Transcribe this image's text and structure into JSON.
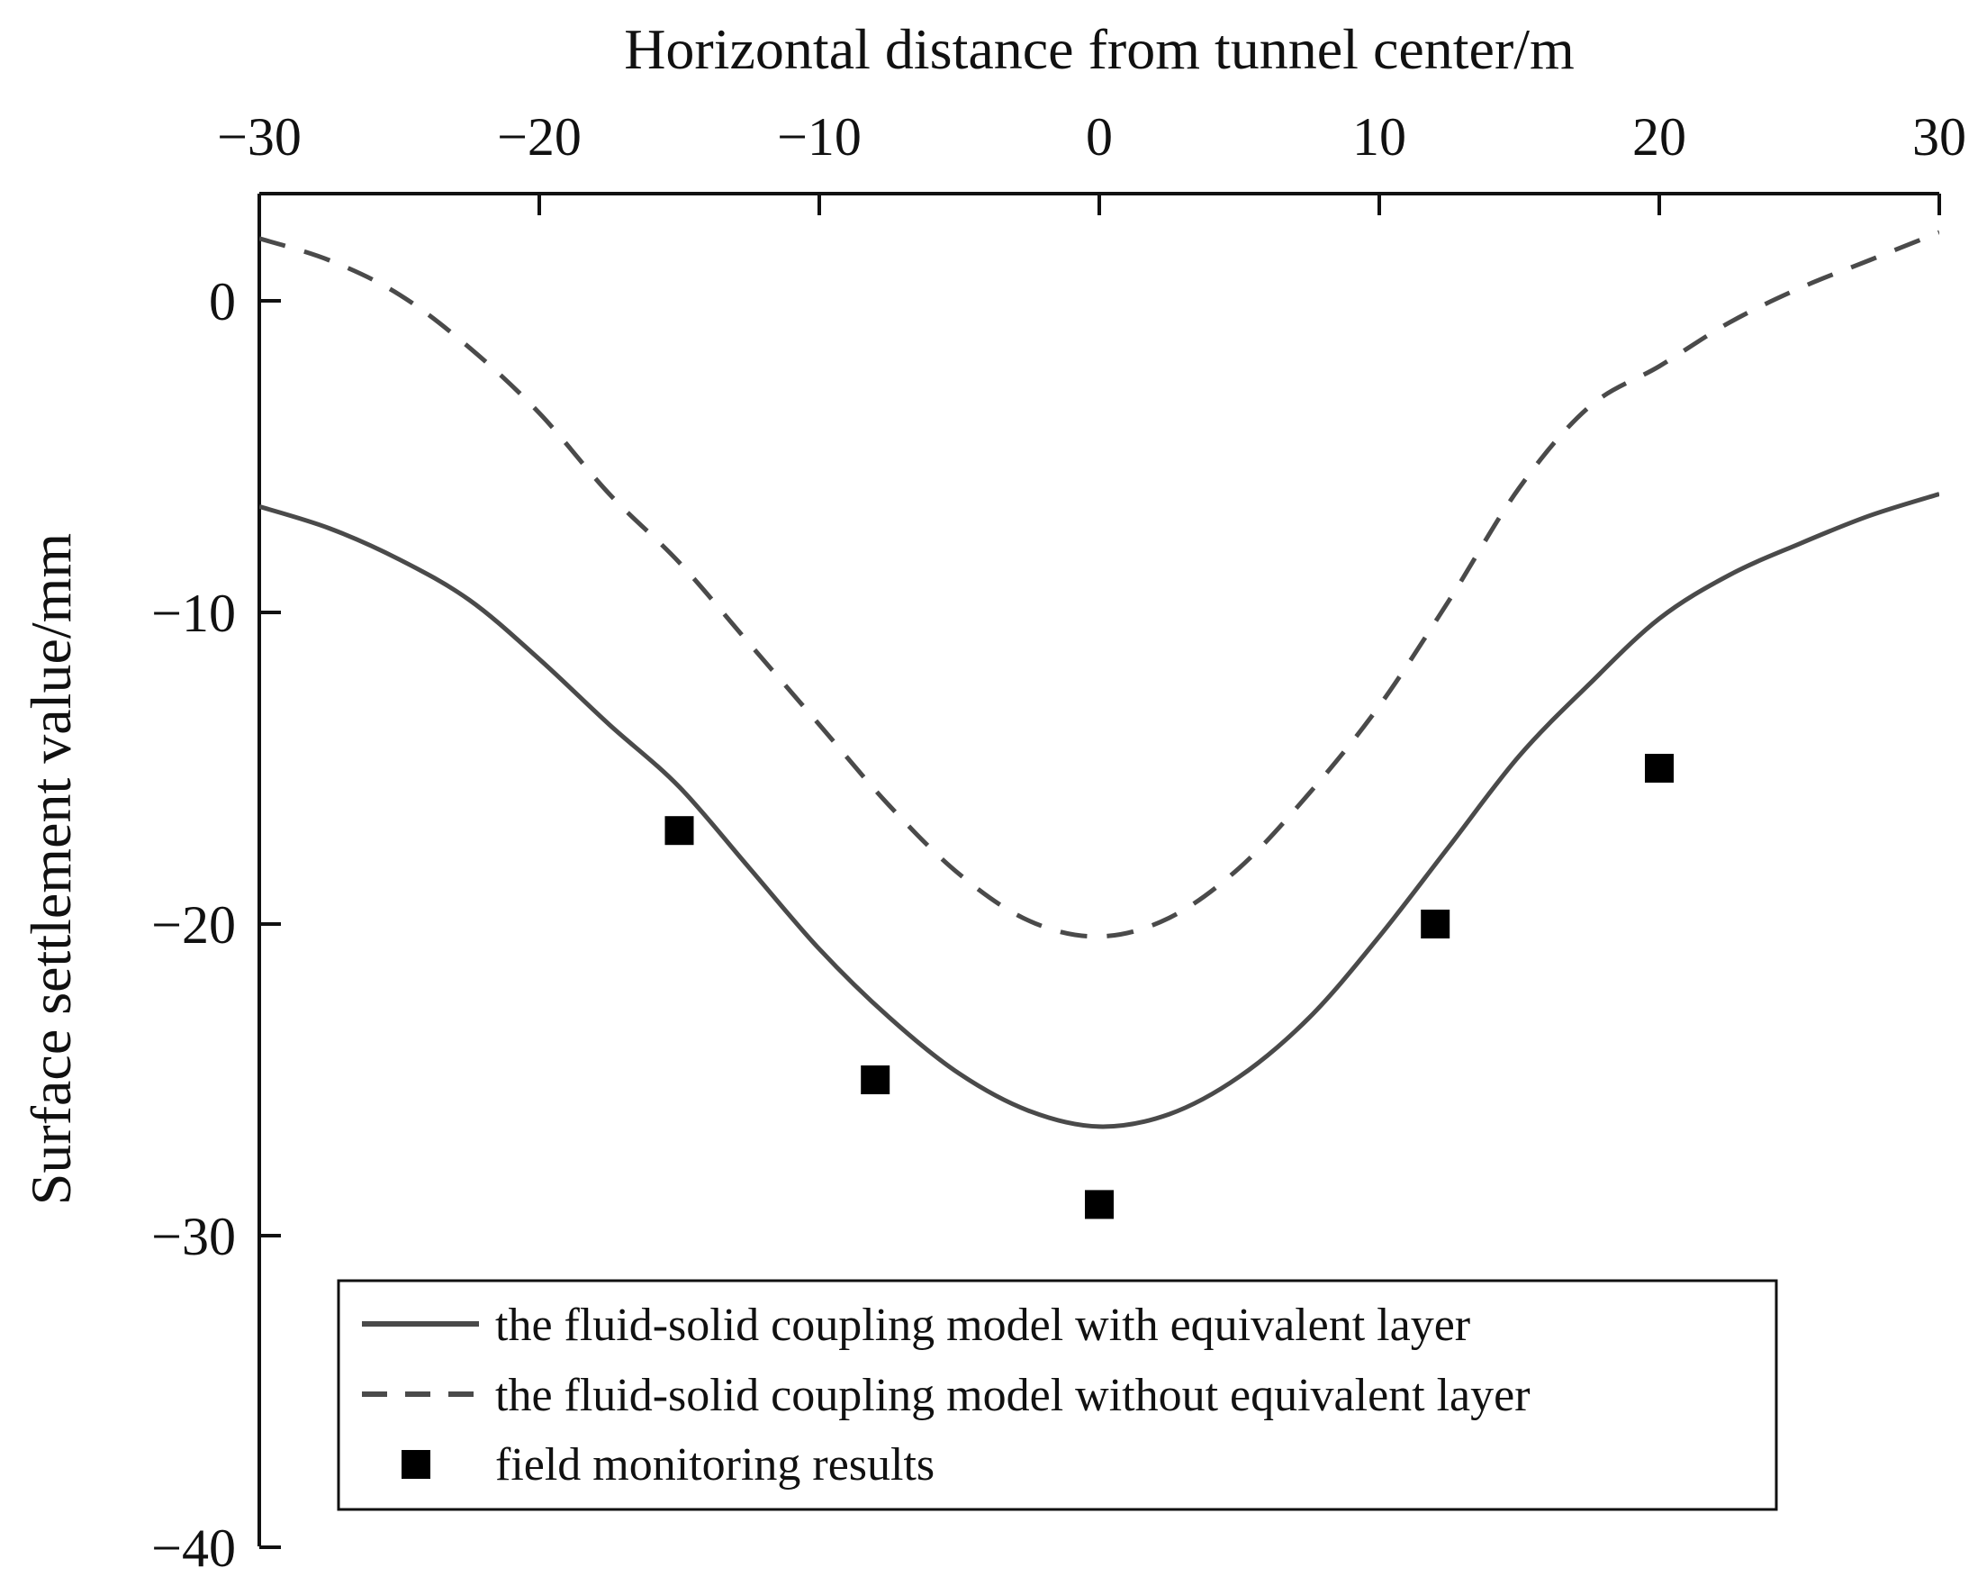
{
  "chart_data": {
    "type": "line",
    "title": "",
    "xlabel": "Horizontal distance from tunnel center/m",
    "ylabel": "Surface settlement value/mm",
    "xlim": [
      -30,
      30
    ],
    "ylim": [
      -40,
      3.5
    ],
    "x_axis_position": "top",
    "x_ticks": [
      -30,
      -20,
      -10,
      0,
      10,
      20,
      30
    ],
    "x_tick_labels": [
      "−30",
      "−20",
      "−10",
      "0",
      "10",
      "20",
      "30"
    ],
    "y_ticks": [
      0,
      -10,
      -20,
      -30,
      -40
    ],
    "y_tick_labels": [
      "0",
      "−10",
      "−20",
      "−30",
      "−40"
    ],
    "grid": false,
    "legend_position": "bottom-left",
    "series": [
      {
        "name": "the fluid-solid coupling model with equivalent layer",
        "style": "solid",
        "color": "#4a4a4a",
        "x": [
          -30,
          -27.5,
          -25,
          -22.5,
          -20,
          -17.5,
          -15,
          -12.5,
          -10,
          -7.5,
          -5,
          -2.5,
          0,
          2.5,
          5,
          7.5,
          10,
          12.5,
          15,
          17.5,
          20,
          22.5,
          25,
          27.5,
          30
        ],
        "y": [
          -6.6,
          -7.3,
          -8.3,
          -9.6,
          -11.5,
          -13.6,
          -15.6,
          -18.2,
          -20.8,
          -23.0,
          -24.8,
          -26.0,
          -26.5,
          -26.1,
          -24.9,
          -23.0,
          -20.4,
          -17.5,
          -14.6,
          -12.3,
          -10.2,
          -8.8,
          -7.8,
          -6.9,
          -6.2
        ]
      },
      {
        "name": "the fluid-solid coupling model without equivalent layer",
        "style": "dashed",
        "color": "#4a4a4a",
        "x": [
          -30,
          -27.5,
          -25,
          -22.5,
          -20,
          -17.5,
          -15,
          -12.5,
          -10,
          -7.5,
          -5,
          -2.5,
          0,
          2.5,
          5,
          7.5,
          10,
          12.5,
          15,
          17.5,
          20,
          22.5,
          25,
          27.5,
          30
        ],
        "y": [
          2.0,
          1.3,
          0.2,
          -1.5,
          -3.6,
          -6.2,
          -8.4,
          -11.0,
          -13.6,
          -16.2,
          -18.4,
          -19.9,
          -20.4,
          -19.8,
          -18.2,
          -15.8,
          -13.0,
          -9.6,
          -6.0,
          -3.4,
          -2.1,
          -0.7,
          0.4,
          1.3,
          2.2
        ]
      },
      {
        "name": "field monitoring results",
        "style": "markers",
        "marker": "square",
        "color": "#000000",
        "x": [
          -15,
          -8,
          0,
          12,
          20
        ],
        "y": [
          -17,
          -25,
          -29,
          -20,
          -15
        ]
      }
    ]
  }
}
